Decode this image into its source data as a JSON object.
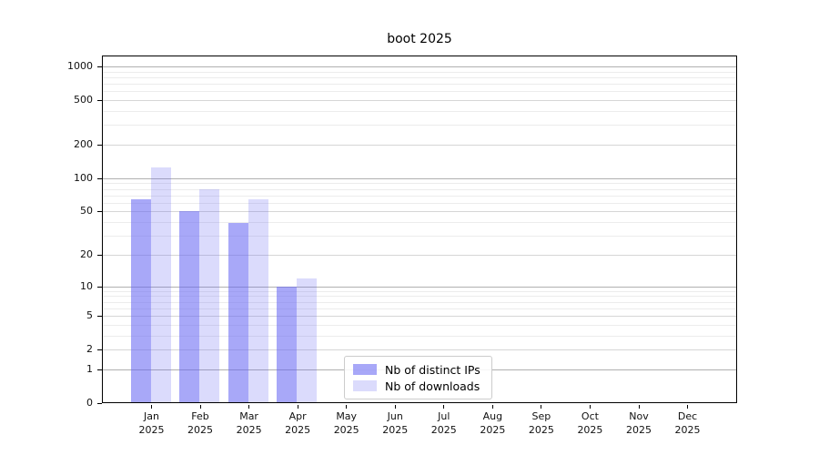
{
  "chart_data": {
    "type": "bar",
    "title": "boot 2025",
    "x_categories": [
      "Jan",
      "Feb",
      "Mar",
      "Apr",
      "May",
      "Jun",
      "Jul",
      "Aug",
      "Sep",
      "Oct",
      "Nov",
      "Dec"
    ],
    "x_year": "2025",
    "series": [
      {
        "name": "Nb of distinct IPs",
        "color": "rgba(100,100,242,0.56)",
        "values": [
          65,
          50,
          39,
          10,
          0,
          0,
          0,
          0,
          0,
          0,
          0,
          0
        ]
      },
      {
        "name": "Nb of downloads",
        "color": "rgba(100,100,242,0.23)",
        "values": [
          125,
          80,
          65,
          12,
          0,
          0,
          0,
          0,
          0,
          0,
          0,
          0
        ]
      }
    ],
    "y_scale": "log10(1+y)",
    "y_ticks": [
      0,
      1,
      2,
      5,
      10,
      20,
      50,
      100,
      200,
      500,
      1000
    ],
    "y_major_gridlines": [
      1,
      10,
      100,
      1000
    ],
    "ylim": [
      0,
      1260
    ],
    "grid": true,
    "legend_position": "lower center",
    "colors": {
      "background": "#ffffff",
      "axis": "#000000",
      "major_grid": "#b0b0b0",
      "labeled_minor_grid": "#d6d6d6",
      "minor_grid": "#ececec",
      "tick_text": "#111111"
    }
  }
}
